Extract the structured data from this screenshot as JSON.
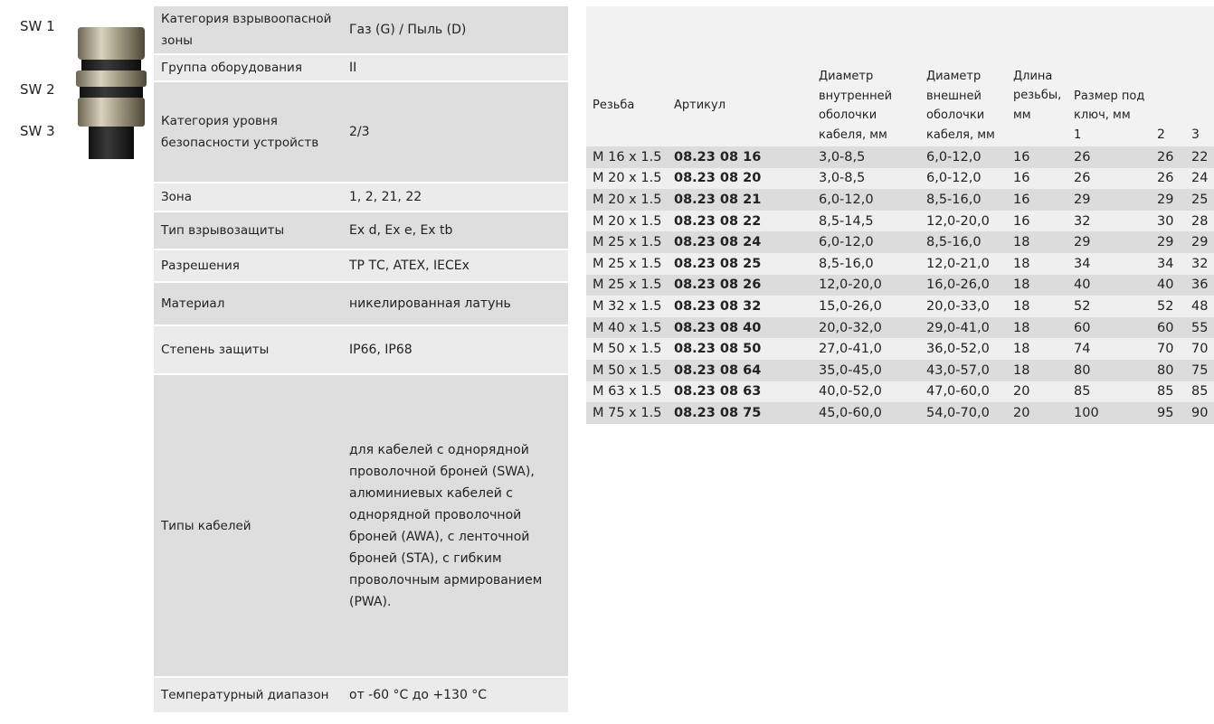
{
  "labels": [
    "SW 1",
    "SW 2",
    "SW 3"
  ],
  "specs": {
    "rows": [
      [
        "Категория взрывоопасной зоны",
        "Газ (G) / Пыль (D)"
      ],
      [
        "Группа оборудования",
        "II"
      ],
      [
        "Категория уровня безопасности устройств",
        "2/3"
      ],
      [
        "Зона",
        "1, 2, 21, 22"
      ],
      [
        "Тип взрывозащиты",
        "Ex d, Ex e, Ex tb"
      ],
      [
        "Разрешения",
        "ТР ТС, ATEX, IECEx"
      ],
      [
        "Материал",
        "никелированная латунь"
      ],
      [
        "Степень защиты",
        "IP66, IP68"
      ],
      [
        "Типы кабелей",
        "для кабелей с однорядной проволочной броней (SWA), алюминиевых кабелей с однорядной проволочной броней (AWA), с ленточной броней (STA), с гибким проволочным армированием (PWA)."
      ],
      [
        "Температурный диапазон",
        "от -60 °C до +130 °C"
      ]
    ]
  },
  "table": {
    "header": [
      "Резьба",
      "Артикул",
      "Диаметр внутренней оболочки кабеля, мм",
      "Диаметр внешней оболочки кабеля, мм",
      "Длина резьбы, мм",
      "Размер под ключ, мм"
    ],
    "subheader": [
      "1",
      "2",
      "3"
    ],
    "rows": [
      [
        "M 16 x 1.5",
        "08.23 08 16",
        "3,0-8,5",
        "6,0-12,0",
        "16",
        "26",
        "26",
        "22"
      ],
      [
        "M 20 x 1.5",
        "08.23 08 20",
        "3,0-8,5",
        "6,0-12,0",
        "16",
        "26",
        "26",
        "24"
      ],
      [
        "M 20 x 1.5",
        "08.23 08 21",
        "6,0-12,0",
        "8,5-16,0",
        "16",
        "29",
        "29",
        "25"
      ],
      [
        "M 20 x 1.5",
        "08.23 08 22",
        "8,5-14,5",
        "12,0-20,0",
        "16",
        "32",
        "30",
        "28"
      ],
      [
        "M 25 x 1.5",
        "08.23 08 24",
        "6,0-12,0",
        "8,5-16,0",
        "18",
        "29",
        "29",
        "29"
      ],
      [
        "M 25 x 1.5",
        "08.23 08 25",
        "8,5-16,0",
        "12,0-21,0",
        "18",
        "34",
        "34",
        "32"
      ],
      [
        "M 25 x 1.5",
        "08.23 08 26",
        "12,0-20,0",
        "16,0-26,0",
        "18",
        "40",
        "40",
        "36"
      ],
      [
        "M 32 x 1.5",
        "08.23 08 32",
        "15,0-26,0",
        "20,0-33,0",
        "18",
        "52",
        "52",
        "48"
      ],
      [
        "M 40 x 1.5",
        "08.23 08 40",
        "20,0-32,0",
        "29,0-41,0",
        "18",
        "60",
        "60",
        "55"
      ],
      [
        "M 50 x 1.5",
        "08.23 08 50",
        "27,0-41,0",
        "36,0-52,0",
        "18",
        "74",
        "70",
        "70"
      ],
      [
        "M 50 x 1.5",
        "08.23 08 64",
        "35,0-45,0",
        "43,0-57,0",
        "18",
        "80",
        "80",
        "75"
      ],
      [
        "M 63 x 1.5",
        "08.23 08 63",
        "40,0-52,0",
        "47,0-60,0",
        "20",
        "85",
        "85",
        "85"
      ],
      [
        "M 75 x 1.5",
        "08.23 08 75",
        "45,0-60,0",
        "54,0-70,0",
        "20",
        "100",
        "95",
        "90"
      ]
    ]
  }
}
